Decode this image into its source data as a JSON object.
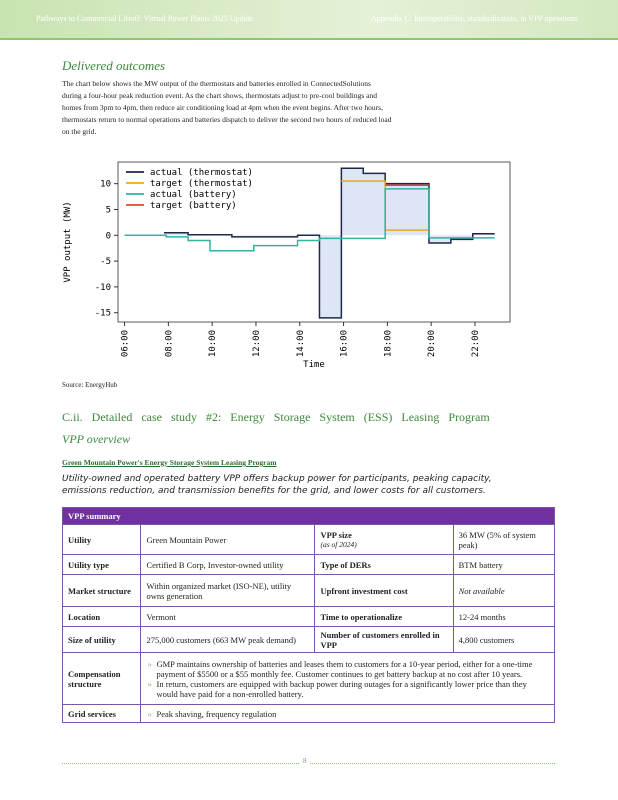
{
  "header": {
    "left": "Pathways to Commercial Liftoff: Virtual Power Plants 2025 Update",
    "right": "Appendix C: Interoperability, standardization, in VPP operations"
  },
  "section_title": "Delivered outcomes",
  "paragraph": "The chart below shows the MW output of the thermostats and batteries enrolled in ConnectedSolutions during a four-hour peak reduction event. As the chart shows, thermostats adjust to pre-cool buildings and homes from 3pm to 4pm, then reduce air conditioning load at 4pm when the event begins. After two hours, thermostats return to normal operations and batteries dispatch to deliver the second two hours of reduced load on the grid.",
  "chart_data": {
    "type": "line",
    "ylabel": "VPP output (MW)",
    "xlabel": "Time",
    "xlim": [
      5.7,
      23.6
    ],
    "ylim": [
      -16.8,
      14.2
    ],
    "xticks": [
      {
        "value": 6,
        "label": "06:00"
      },
      {
        "value": 8,
        "label": "08:00"
      },
      {
        "value": 10,
        "label": "10:00"
      },
      {
        "value": 12,
        "label": "12:00"
      },
      {
        "value": 14,
        "label": "14:00"
      },
      {
        "value": 16,
        "label": "16:00"
      },
      {
        "value": 18,
        "label": "18:00"
      },
      {
        "value": 20,
        "label": "20:00"
      },
      {
        "value": 22,
        "label": "22:00"
      }
    ],
    "yticks": [
      -15,
      -10,
      -5,
      0,
      5,
      10
    ],
    "legend": "upper left",
    "series": [
      {
        "name": "actual (thermostat)",
        "color": "#1b2a4a",
        "fill": "#dce6f5",
        "x": [
          7.8,
          8.9,
          8.9,
          10.9,
          10.9,
          13.9,
          13.9,
          14.9,
          14.9,
          15.9,
          15.9,
          16.9,
          16.9,
          17.9,
          17.9,
          19.9,
          19.9,
          20.9,
          20.9,
          21.9,
          21.9,
          22.9
        ],
        "values": [
          0.5,
          0.5,
          0.1,
          0.1,
          -0.3,
          -0.3,
          0,
          0,
          -16,
          -16,
          13,
          13,
          12,
          12,
          10,
          10,
          -1.5,
          -1.5,
          -0.8,
          -0.8,
          0.3,
          0.3
        ]
      },
      {
        "name": "target (thermostat)",
        "color": "#f2a516",
        "x": [
          15.9,
          17.9,
          17.9,
          19.9
        ],
        "values": [
          10.5,
          10.5,
          1,
          1
        ]
      },
      {
        "name": "actual (battery)",
        "color": "#2fb5a0",
        "x": [
          6,
          7.9,
          7.9,
          8.9,
          8.9,
          9.9,
          9.9,
          11.9,
          11.9,
          13.9,
          13.9,
          14.9,
          14.9,
          17.9,
          17.9,
          19.9,
          19.9,
          22.9
        ],
        "values": [
          0,
          0,
          -0.3,
          -0.3,
          -1,
          -1,
          -3,
          -3,
          -2,
          -2,
          -1,
          -1,
          -0.6,
          -0.6,
          9,
          9,
          -0.5,
          -0.5
        ]
      },
      {
        "name": "target (battery)",
        "color": "#e8452c",
        "x": [
          17.9,
          19.9
        ],
        "values": [
          9.7,
          9.7
        ]
      }
    ]
  },
  "source": "Source: EnergyHub",
  "case_heading": "C.ii. Detailed case study #2: Energy Storage System (ESS) Leasing Program",
  "overview_title": "VPP overview",
  "link": "Green Mountain Power's Energy Storage System Leasing Program",
  "summary": "Utility-owned and operated battery VPP offers backup power for participants, peaking capacity, emissions reduction, and transmission benefits for the grid, and lower costs for all customers.",
  "table": {
    "title": "VPP summary",
    "rows": [
      [
        "Utility",
        "Green Mountain Power",
        [
          "VPP size",
          "(as of 2024)"
        ],
        "36 MW (5% of system peak)"
      ],
      [
        "Utility type",
        "Certified B Corp, Investor-owned utility",
        "Type of DERs",
        "BTM battery"
      ],
      [
        "Market structure",
        "Within organized market (ISO-NE), utility owns generation",
        "Upfront investment cost",
        "Not available"
      ],
      [
        "Location",
        "Vermont",
        "Time to operationalize",
        "12-24 months"
      ],
      [
        "Size of utility",
        "275,000 customers (663 MW peak demand)",
        "Number of customers enrolled in VPP",
        "4,800 customers"
      ],
      [
        "Compensation structure",
        [
          "GMP maintains ownership of batteries and leases them to customers for a 10-year period, either for a one-time payment of $5500 or a $55 monthly fee. Customer continues to get battery backup at no cost after 10 years.",
          "In return, customers are equipped with backup power during outages for a significantly lower price than they would have paid for a non-enrolled battery."
        ]
      ],
      [
        "Grid services",
        [
          "Peak shaving, frequency regulation"
        ]
      ]
    ]
  },
  "page_number": "8"
}
